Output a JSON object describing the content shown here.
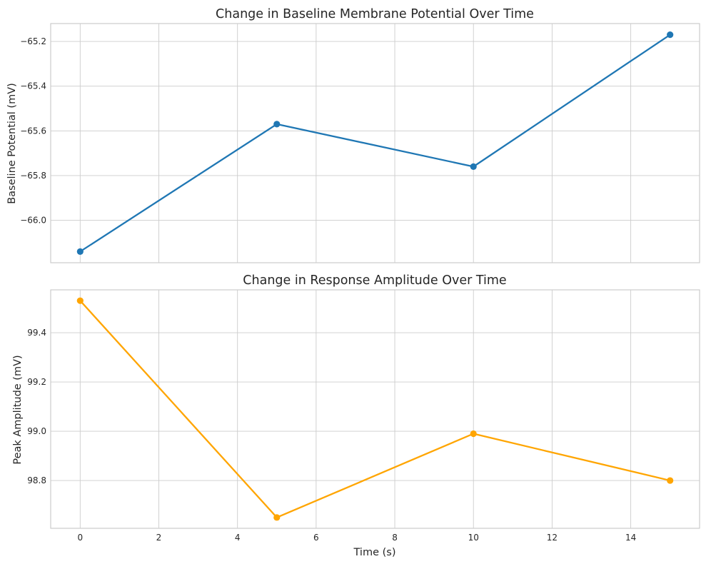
{
  "chart_data": [
    {
      "type": "line",
      "title": "Change in Baseline Membrane Potential Over Time",
      "xlabel": "",
      "ylabel": "Baseline Potential (mV)",
      "x": [
        0,
        5,
        10,
        15
      ],
      "series": [
        {
          "values": [
            -66.14,
            -65.57,
            -65.76,
            -65.17
          ],
          "color": "#1f77b4"
        }
      ],
      "xlim": [
        -0.75,
        15.75
      ],
      "ylim": [
        -66.19,
        -65.12
      ],
      "xticks": [
        0,
        2,
        4,
        6,
        8,
        10,
        12,
        14
      ],
      "xtick_labels": [],
      "yticks": [
        -66.0,
        -65.8,
        -65.6,
        -65.4,
        -65.2
      ],
      "ytick_labels": [
        "−66.0",
        "−65.8",
        "−65.6",
        "−65.4",
        "−65.2"
      ],
      "grid": true,
      "marker": "circle"
    },
    {
      "type": "line",
      "title": "Change in Response Amplitude Over Time",
      "xlabel": "Time (s)",
      "ylabel": "Peak Amplitude (mV)",
      "x": [
        0,
        5,
        10,
        15
      ],
      "series": [
        {
          "values": [
            99.53,
            98.65,
            98.99,
            98.8
          ],
          "color": "#ffa500"
        }
      ],
      "xlim": [
        -0.75,
        15.75
      ],
      "ylim": [
        98.606,
        99.574
      ],
      "xticks": [
        0,
        2,
        4,
        6,
        8,
        10,
        12,
        14
      ],
      "xtick_labels": [
        "0",
        "2",
        "4",
        "6",
        "8",
        "10",
        "12",
        "14"
      ],
      "yticks": [
        98.8,
        99.0,
        99.2,
        99.4
      ],
      "ytick_labels": [
        "98.8",
        "99.0",
        "99.2",
        "99.4"
      ],
      "grid": true,
      "marker": "circle"
    }
  ]
}
